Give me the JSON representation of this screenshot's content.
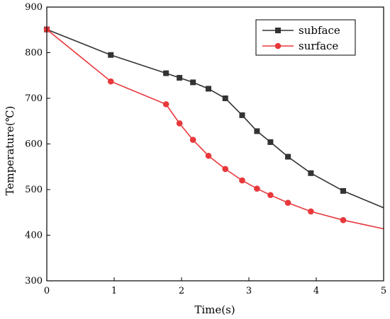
{
  "chart_data": {
    "type": "line",
    "xlabel": "Time(s)",
    "ylabel": "Temperature(℃)",
    "xlim": [
      0,
      5
    ],
    "ylim": [
      300,
      900
    ],
    "xticks": [
      0,
      1,
      2,
      3,
      4,
      5
    ],
    "yticks": [
      300,
      400,
      500,
      600,
      700,
      800,
      900
    ],
    "grid": false,
    "legend_position": "top-right",
    "series": [
      {
        "name": "subface",
        "color": "#333333",
        "marker": "square",
        "x": [
          0,
          0.95,
          1.77,
          1.97,
          2.17,
          2.4,
          2.65,
          2.9,
          3.12,
          3.32,
          3.58,
          3.92,
          4.4,
          5.0
        ],
        "y": [
          851,
          795,
          755,
          745,
          735,
          721,
          700,
          663,
          628,
          604,
          572,
          536,
          497,
          460
        ],
        "markers": [
          true,
          true,
          true,
          true,
          true,
          true,
          true,
          true,
          true,
          true,
          true,
          true,
          true,
          false
        ]
      },
      {
        "name": "surface",
        "color": "#e8383b",
        "marker": "circle",
        "x": [
          0,
          0.95,
          1.77,
          1.97,
          2.17,
          2.4,
          2.65,
          2.9,
          3.12,
          3.32,
          3.58,
          3.92,
          4.4,
          5.0
        ],
        "y": [
          851,
          737,
          687,
          645,
          609,
          574,
          545,
          520,
          502,
          488,
          471,
          452,
          433,
          414
        ],
        "markers": [
          true,
          true,
          true,
          true,
          true,
          true,
          true,
          true,
          true,
          true,
          true,
          true,
          true,
          false
        ]
      }
    ]
  }
}
